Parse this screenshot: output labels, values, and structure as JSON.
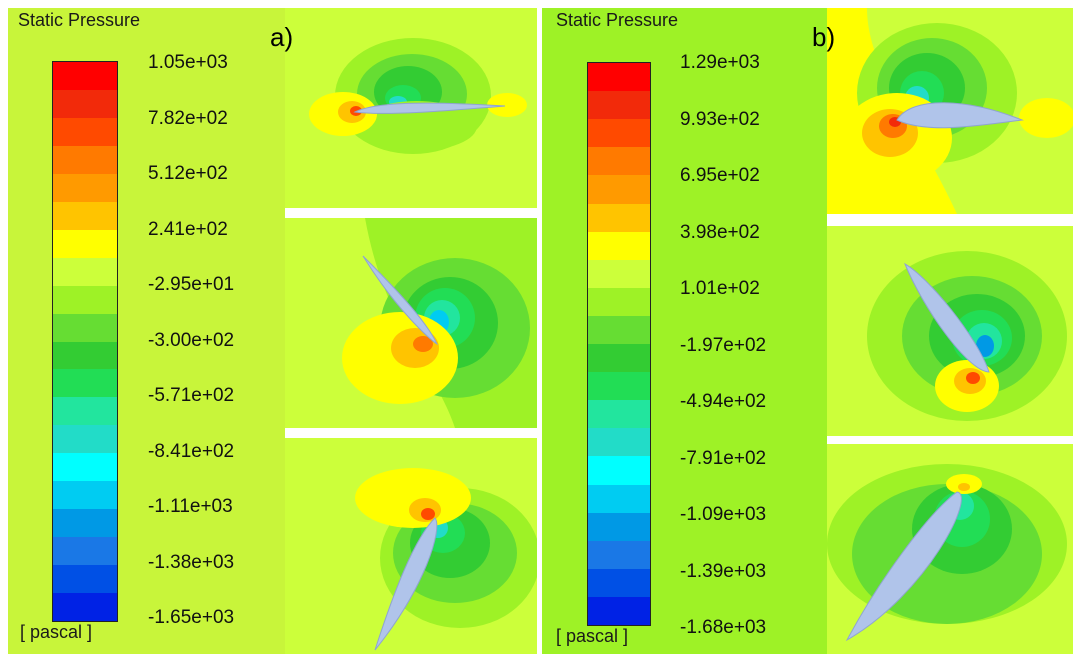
{
  "panel_a": {
    "tag": "a)",
    "legend": {
      "title": "Static Pressure",
      "unit": "[ pascal ]",
      "ticks": [
        "1.05e+03",
        "7.82e+02",
        "5.12e+02",
        "2.41e+02",
        "-2.95e+01",
        "-3.00e+02",
        "-5.71e+02",
        "-8.41e+02",
        "-1.11e+03",
        "-1.38e+03",
        "-1.65e+03"
      ]
    },
    "snapshots": [
      {
        "angle_deg": 3
      },
      {
        "angle_deg": 55
      },
      {
        "angle_deg": -62
      }
    ]
  },
  "panel_b": {
    "tag": "b)",
    "legend": {
      "title": "Static Pressure",
      "unit": "[ pascal ]",
      "ticks": [
        "1.29e+03",
        "9.93e+02",
        "6.95e+02",
        "3.98e+02",
        "1.01e+02",
        "-1.97e+02",
        "-4.94e+02",
        "-7.91e+02",
        "-1.09e+03",
        "-1.39e+03",
        "-1.68e+03"
      ]
    },
    "snapshots": [
      {
        "angle_deg": 8
      },
      {
        "angle_deg": 63
      },
      {
        "angle_deg": -58
      }
    ]
  },
  "colormap": [
    "#ff0000",
    "#f22a0a",
    "#ff4a00",
    "#ff7a00",
    "#ff9a00",
    "#ffc400",
    "#ffff00",
    "#ccff3a",
    "#9ef226",
    "#66dd33",
    "#33cc33",
    "#22dd55",
    "#22e59e",
    "#22dcc8",
    "#00ffff",
    "#00ccf2",
    "#0099e5",
    "#1a78e6",
    "#0050e5",
    "#0022e5"
  ],
  "colors": {
    "background": "#ccff3a",
    "airfoil": "#b0c4ea"
  }
}
